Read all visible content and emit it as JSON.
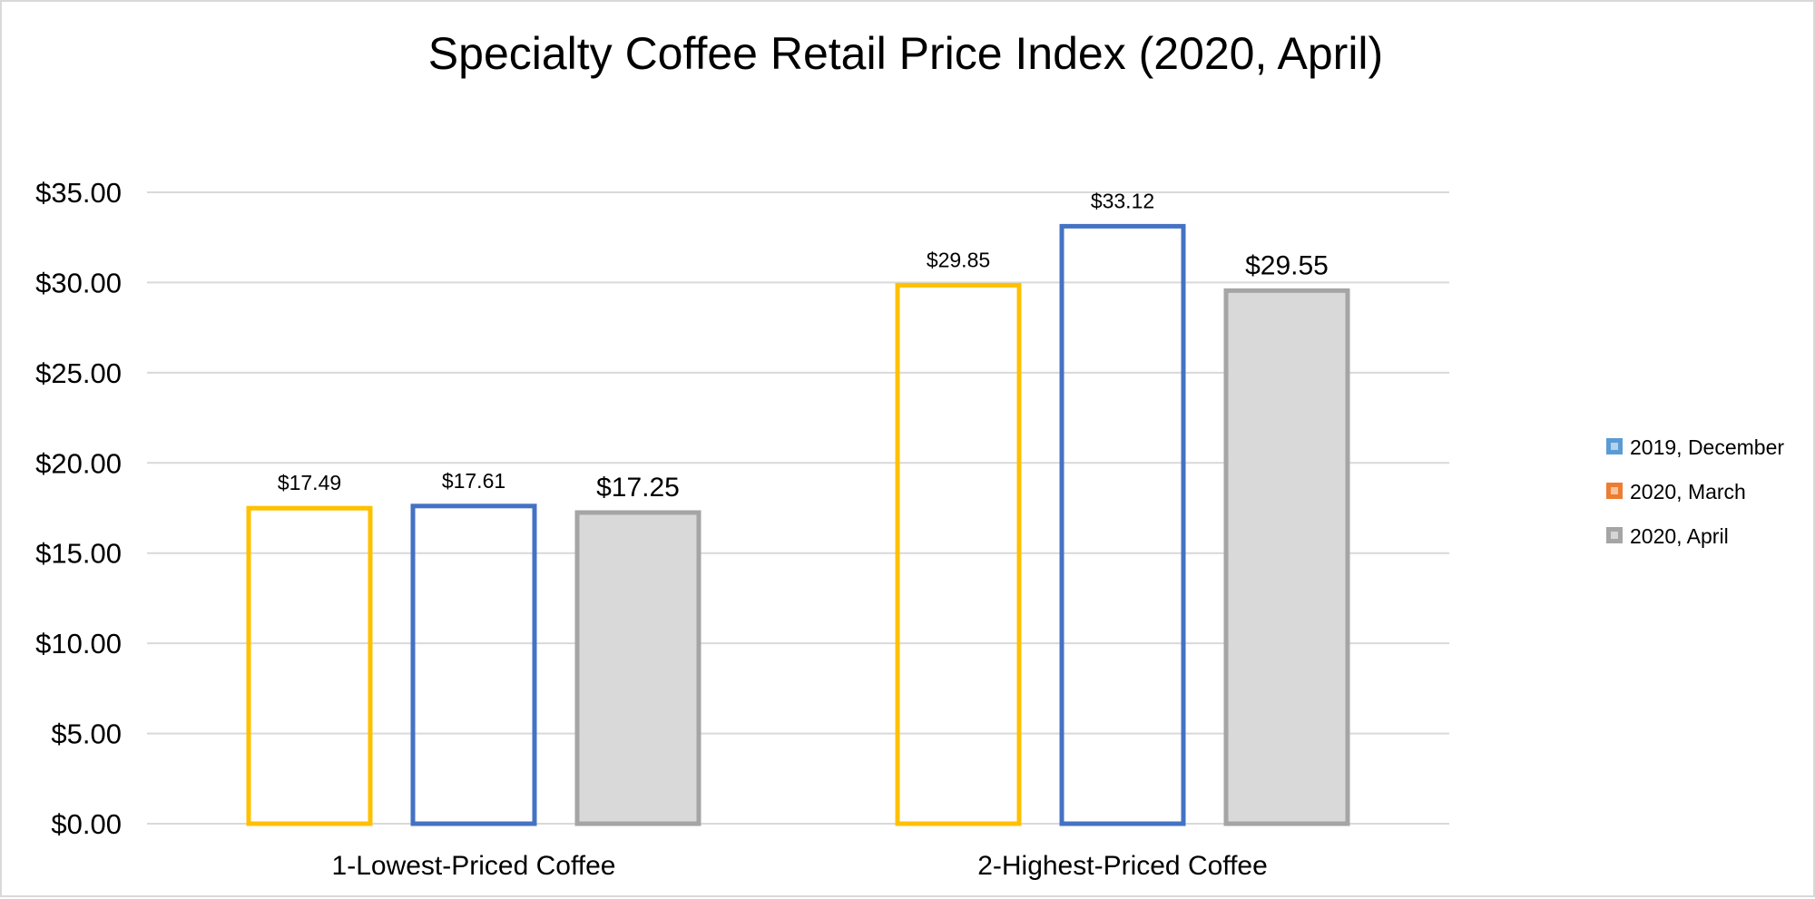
{
  "chart_data": {
    "type": "bar",
    "title": "Specialty Coffee Retail Price Index (2020, April)",
    "xlabel": "",
    "ylabel": "",
    "categories": [
      "1-Lowest-Priced Coffee",
      "2-Highest-Priced Coffee"
    ],
    "ylim": [
      0,
      35
    ],
    "yticks": [
      0,
      5,
      10,
      15,
      20,
      25,
      30,
      35
    ],
    "ytick_labels": [
      "$0.00",
      "$5.00",
      "$10.00",
      "$15.00",
      "$20.00",
      "$25.00",
      "$30.00",
      "$35.00"
    ],
    "grid": true,
    "legend_position": "right",
    "series": [
      {
        "name": "2019, December",
        "values": [
          17.49,
          29.85
        ],
        "labels": [
          "$17.49",
          "$29.85"
        ],
        "stroke": "#FFC000",
        "fill": "none"
      },
      {
        "name": "2020, March",
        "values": [
          17.61,
          33.12
        ],
        "labels": [
          "$17.61",
          "$33.12"
        ],
        "stroke": "#4472C4",
        "fill": "none"
      },
      {
        "name": "2020, April",
        "values": [
          17.25,
          29.55
        ],
        "labels": [
          "$17.25",
          "$29.55"
        ],
        "stroke": "#A5A5A5",
        "fill": "#D9D9D9",
        "label_emphasis": true
      }
    ],
    "legend": [
      {
        "name": "2019, December",
        "swatch_fill": "#5B9BD5"
      },
      {
        "name": "2020, March",
        "swatch_fill": "#ED7D31"
      },
      {
        "name": "2020, April",
        "swatch_fill": "#A5A5A5"
      }
    ],
    "gridline_color": "#D9D9D9"
  }
}
